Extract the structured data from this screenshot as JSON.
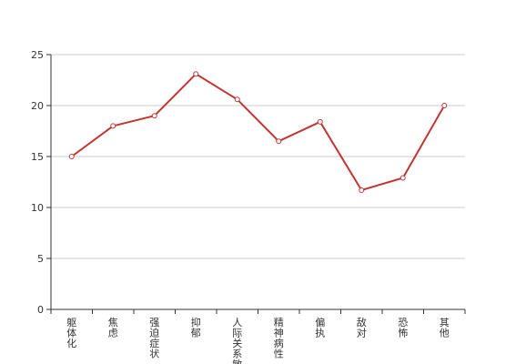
{
  "chart_data": {
    "type": "line",
    "categories": [
      "躯体化",
      "焦虑",
      "强迫症状",
      "抑郁",
      "人际关系敏感",
      "精神病性",
      "偏执",
      "敌对",
      "恐怖",
      "其他"
    ],
    "series": [
      {
        "values": [
          15.0,
          18.0,
          19.0,
          23.1,
          20.6,
          16.5,
          18.4,
          11.7,
          12.9,
          20.0
        ]
      }
    ],
    "y_ticks": [
      "0",
      "5",
      "10",
      "15",
      "20",
      "25"
    ],
    "ylim": [
      0,
      25
    ],
    "grid": true,
    "legend": "none",
    "colors": {
      "line": "#c23531",
      "grid": "#cccccc",
      "axis": "#333333"
    }
  }
}
